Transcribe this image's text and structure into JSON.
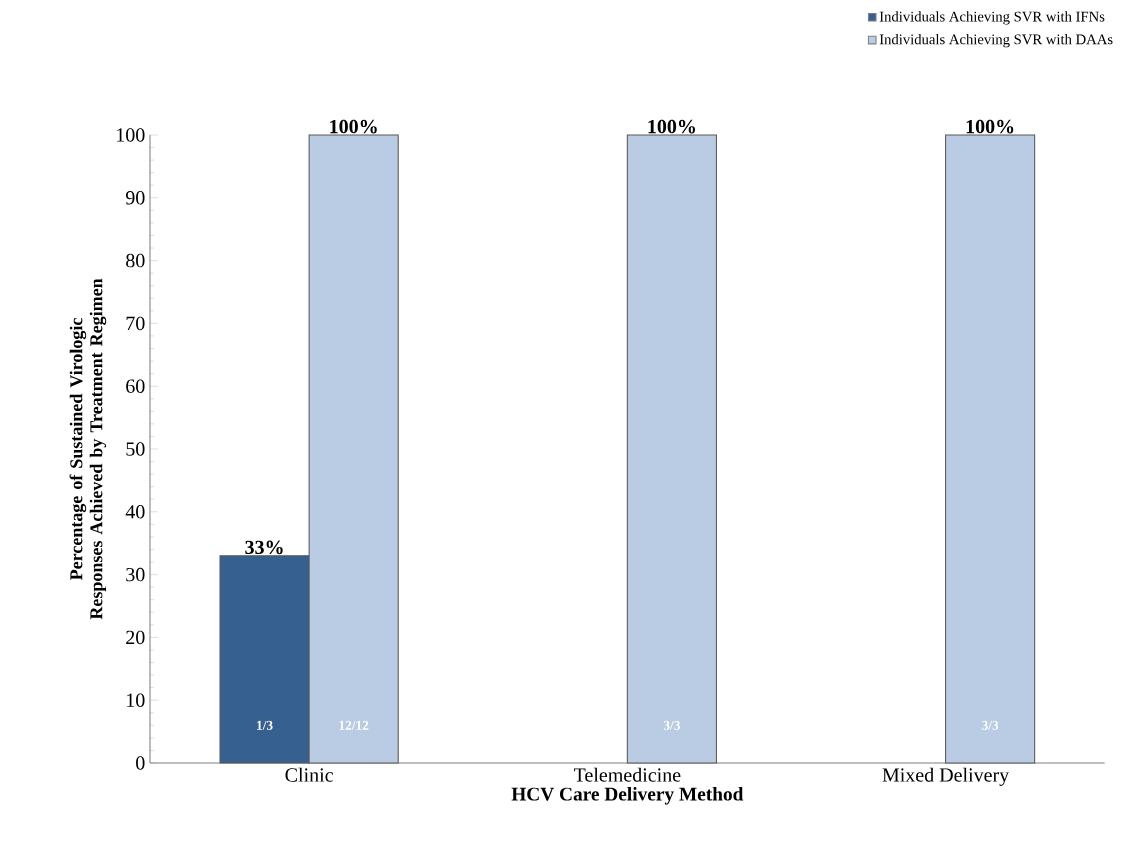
{
  "chart_data": {
    "type": "bar",
    "xlabel": "HCV Care Delivery Method",
    "ylabel": "Percentage of  Sustained Virologic Responses Achieved by Treatment Regimen",
    "categories": [
      "Clinic",
      "Telemedicine",
      "Mixed Delivery"
    ],
    "series": [
      {
        "name": "Individuals Achieving SVR with IFNs",
        "color": "#36608f",
        "values": [
          33,
          null,
          null
        ],
        "value_labels": [
          "33%",
          null,
          null
        ]
      },
      {
        "name": "Individuals Achieving SVR with DAAs",
        "color": "#b9cce4",
        "values": [
          100,
          100,
          100
        ],
        "value_labels": [
          "100%",
          "100%",
          "100%"
        ]
      }
    ],
    "ylim": [
      0,
      100
    ],
    "yticks": [
      0,
      10,
      20,
      30,
      40,
      50,
      60,
      70,
      80,
      90,
      100
    ],
    "legend": "top right",
    "grid": false,
    "annotations": [
      {
        "text": "1/3",
        "x": "Clinic",
        "y": 6
      },
      {
        "text": "12/12",
        "x": "Clinic",
        "y": 6
      },
      {
        "text": "3/3",
        "x": "Telemedicine",
        "y": 6
      },
      {
        "text": "3/3",
        "x": "Mixed Delivery",
        "y": 6
      }
    ]
  }
}
